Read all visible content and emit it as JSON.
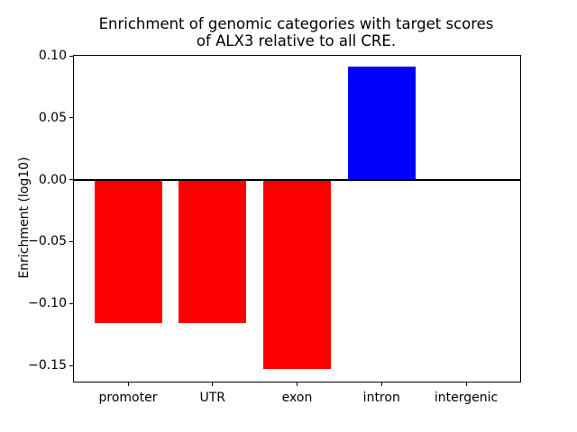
{
  "chart_data": {
    "type": "bar",
    "title_lines": [
      "Enrichment of genomic categories with target scores",
      "of ALX3 relative to all CRE."
    ],
    "ylabel": "Enrichment (log10)",
    "xlabel": "",
    "categories": [
      "promoter",
      "UTR",
      "exon",
      "intron",
      "intergenic"
    ],
    "values": [
      -0.116,
      -0.116,
      -0.153,
      0.091,
      0.0
    ],
    "bar_colors": [
      "#ff0000",
      "#ff0000",
      "#ff0000",
      "#0000ff",
      "#0000ff"
    ],
    "bar_width": 0.8,
    "ylim": [
      -0.163,
      0.1
    ],
    "xlim": [
      -0.64,
      4.64
    ],
    "yticks": [
      0.1,
      0.05,
      0.0,
      -0.05,
      -0.1,
      -0.15
    ],
    "ytick_labels": [
      "0.10",
      "0.05",
      "0.00",
      "−0.05",
      "−0.10",
      "−0.15"
    ],
    "zero_line": true,
    "grid": false,
    "legend_position": "none",
    "background_color": "#ffffff",
    "spine_color": "#000000"
  }
}
